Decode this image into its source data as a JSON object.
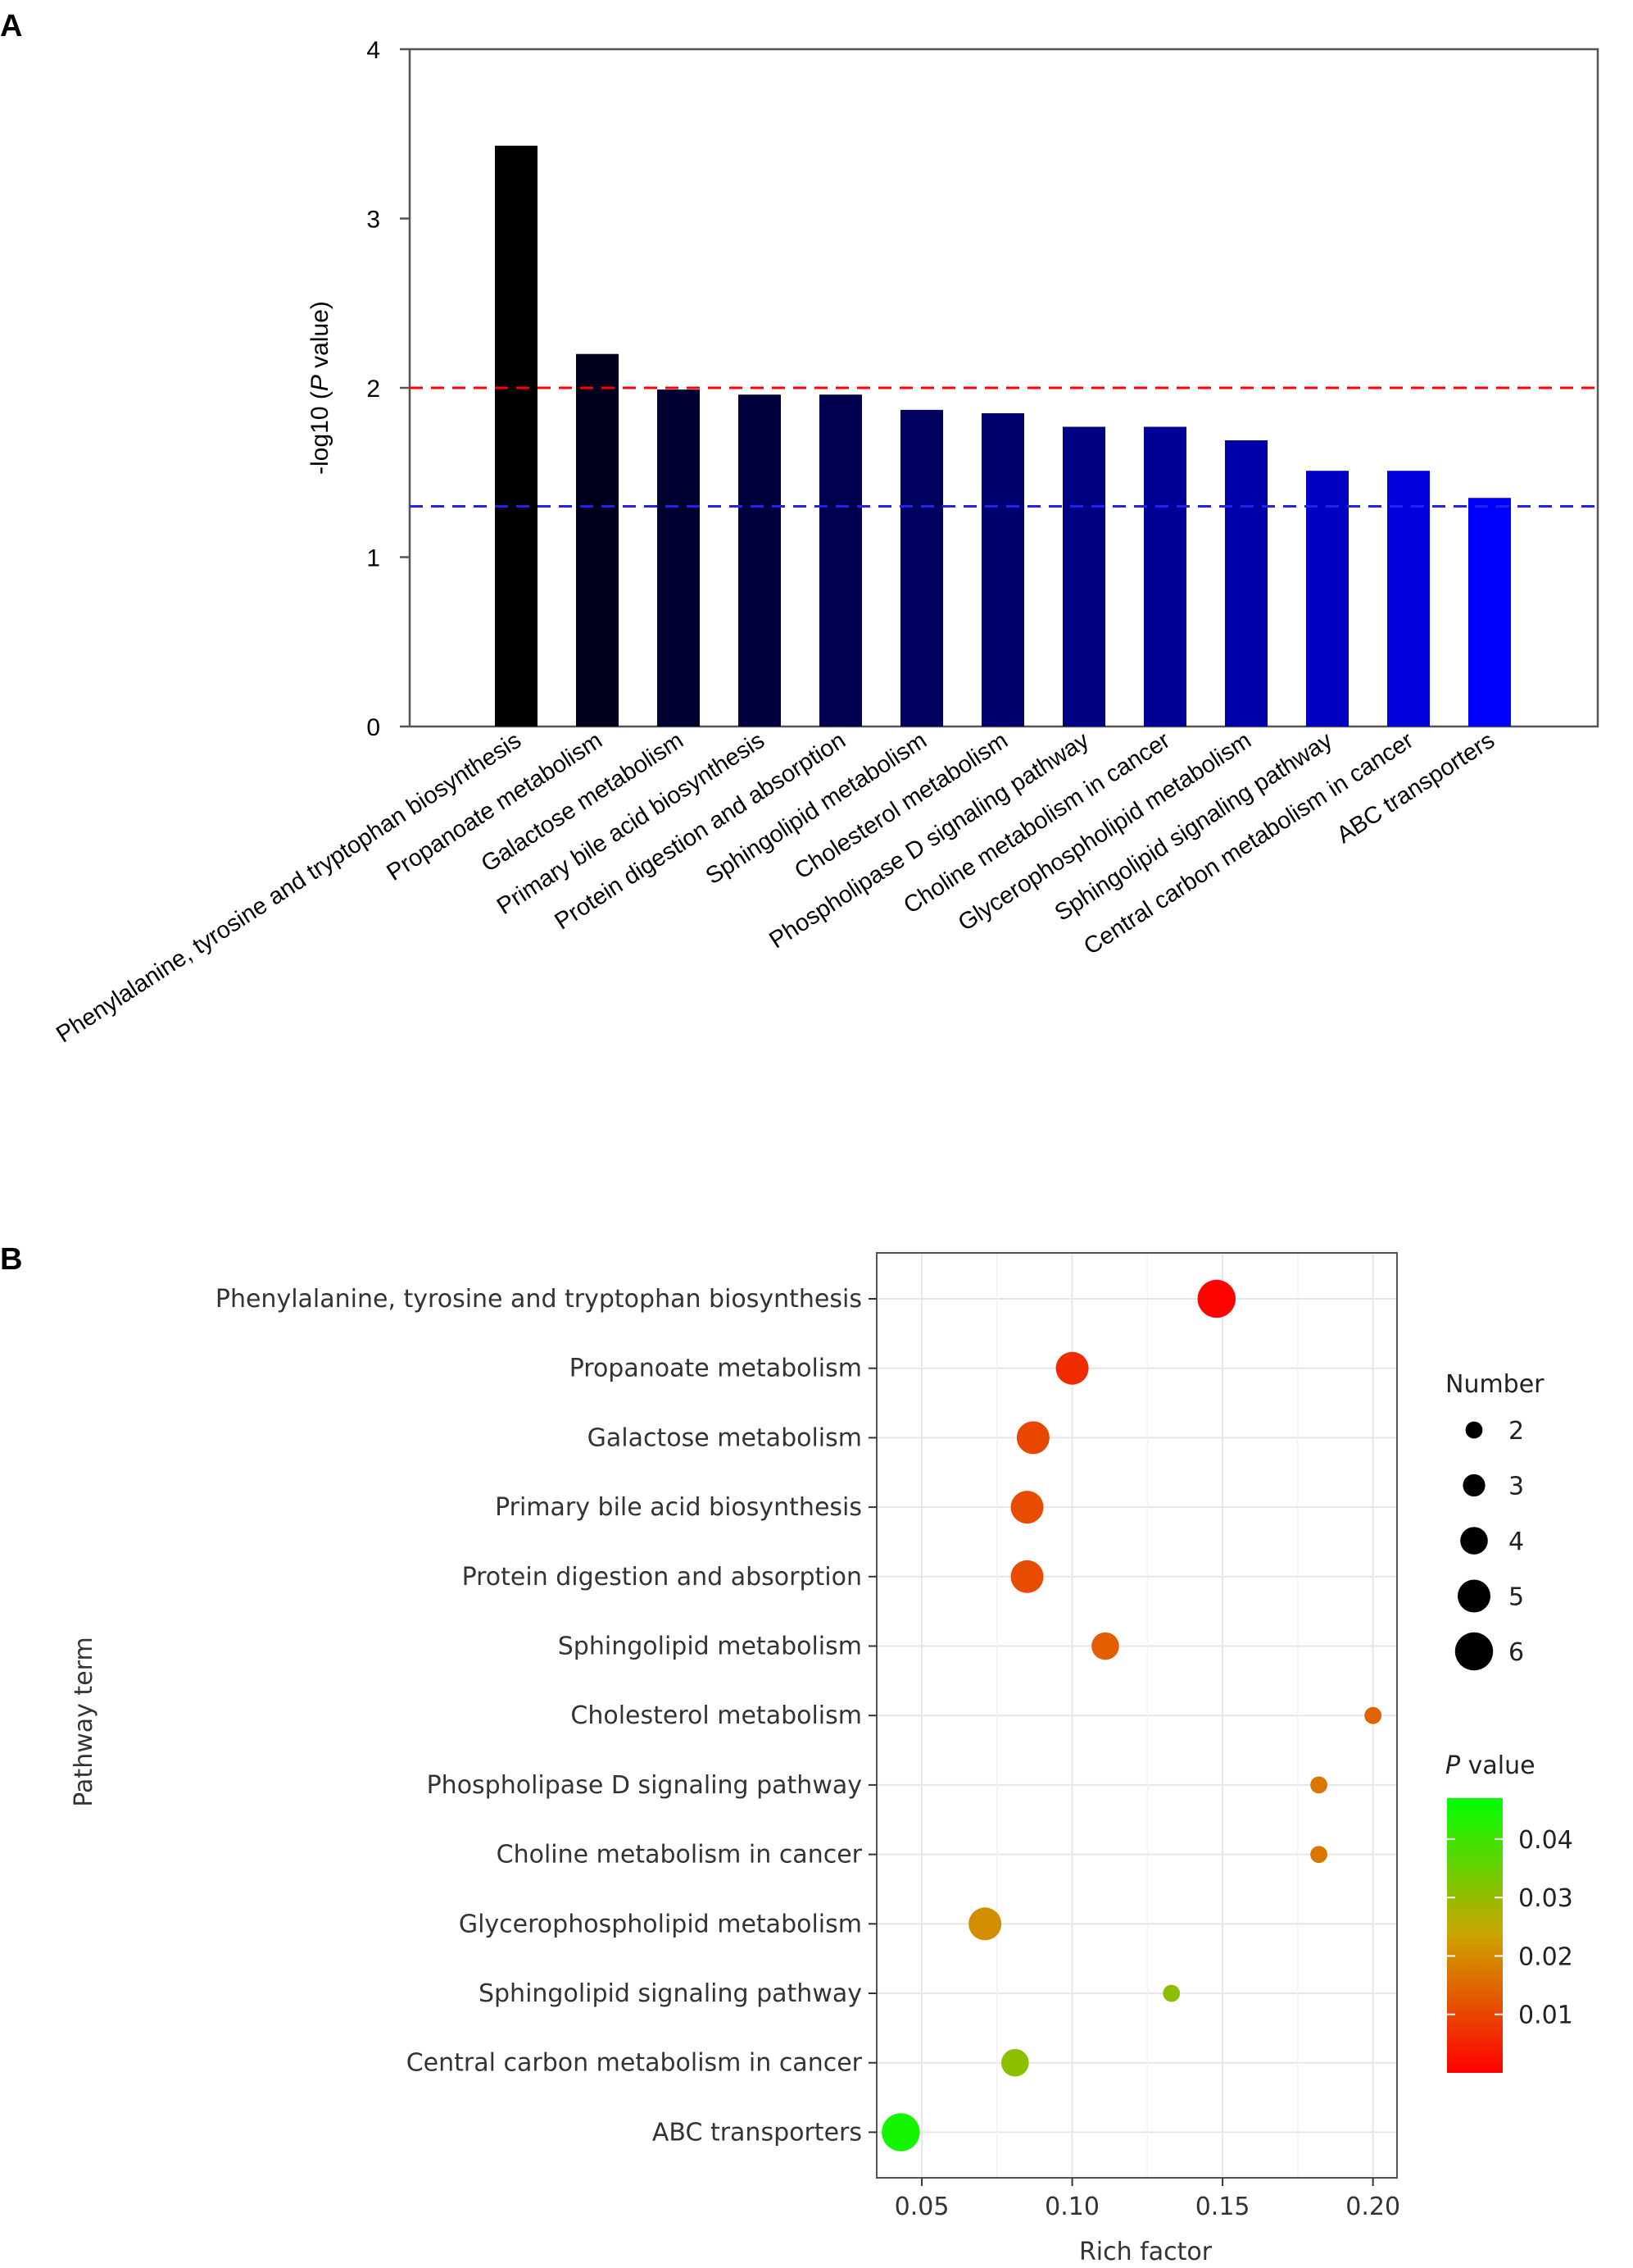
{
  "chart_data": [
    {
      "panel_label": "A",
      "type": "bar",
      "ylabel_prefix": "-log10 (",
      "ylabel_italic": "P",
      "ylabel_suffix": " value)",
      "ylim": [
        0,
        4
      ],
      "yticks": [
        "0",
        "1",
        "2",
        "3",
        "4"
      ],
      "threshold_lines": [
        {
          "value": 2.0,
          "color": "#ff0000"
        },
        {
          "value": 1.3,
          "color": "#2222ee"
        }
      ],
      "categories": [
        "Phenylalanine, tyrosine and tryptophan biosynthesis",
        "Propanoate metabolism",
        "Galactose metabolism",
        "Primary bile acid biosynthesis",
        "Protein digestion and absorption",
        "Sphingolipid metabolism",
        "Cholesterol metabolism",
        "Phospholipase D signaling pathway",
        "Choline metabolism in cancer",
        "Glycerophospholipid metabolism",
        "Sphingolipid signaling pathway",
        "Central carbon metabolism in cancer",
        "ABC transporters"
      ],
      "values": [
        3.43,
        2.2,
        1.99,
        1.96,
        1.96,
        1.87,
        1.85,
        1.77,
        1.77,
        1.69,
        1.51,
        1.51,
        1.35
      ],
      "bar_colors": [
        "#000000",
        "#00001e",
        "#000030",
        "#00003f",
        "#00004f",
        "#00005f",
        "#000070",
        "#000082",
        "#000096",
        "#0000aa",
        "#0000c2",
        "#0000dc",
        "#0000ff"
      ],
      "grid": false
    },
    {
      "panel_label": "B",
      "type": "scatter",
      "xlabel": "Rich factor",
      "ylabel": "Pathway term",
      "xlim": [
        0.035,
        0.208
      ],
      "xticks": [
        0.05,
        0.1,
        0.15,
        0.2
      ],
      "xtick_labels": [
        "0.05",
        "0.10",
        "0.15",
        "0.20"
      ],
      "grid": true,
      "categories": [
        "Phenylalanine, tyrosine and tryptophan biosynthesis",
        "Propanoate metabolism",
        "Galactose metabolism",
        "Primary bile acid biosynthesis",
        "Protein digestion and absorption",
        "Sphingolipid metabolism",
        "Cholesterol metabolism",
        "Phospholipase D signaling pathway",
        "Choline metabolism in cancer",
        "Glycerophospholipid metabolism",
        "Sphingolipid signaling pathway",
        "Central carbon metabolism in cancer",
        "ABC transporters"
      ],
      "points": [
        {
          "rich_factor": 0.148,
          "number": 6,
          "p_value": 0.0004
        },
        {
          "rich_factor": 0.1,
          "number": 5,
          "p_value": 0.0063
        },
        {
          "rich_factor": 0.087,
          "number": 5,
          "p_value": 0.0102
        },
        {
          "rich_factor": 0.085,
          "number": 5,
          "p_value": 0.011
        },
        {
          "rich_factor": 0.085,
          "number": 5,
          "p_value": 0.011
        },
        {
          "rich_factor": 0.111,
          "number": 4,
          "p_value": 0.0135
        },
        {
          "rich_factor": 0.2,
          "number": 2,
          "p_value": 0.0141
        },
        {
          "rich_factor": 0.182,
          "number": 2,
          "p_value": 0.017
        },
        {
          "rich_factor": 0.182,
          "number": 2,
          "p_value": 0.017
        },
        {
          "rich_factor": 0.071,
          "number": 5,
          "p_value": 0.0204
        },
        {
          "rich_factor": 0.133,
          "number": 2,
          "p_value": 0.031
        },
        {
          "rich_factor": 0.081,
          "number": 4,
          "p_value": 0.031
        },
        {
          "rich_factor": 0.043,
          "number": 6,
          "p_value": 0.0447
        }
      ],
      "size_legend": {
        "title": "Number",
        "entries": [
          "2",
          "3",
          "4",
          "5",
          "6"
        ]
      },
      "color_legend": {
        "title_italic": "P",
        "title_suffix": " value",
        "ticks": [
          0.04,
          0.03,
          0.02,
          0.01
        ],
        "tick_labels": [
          "0.04",
          "0.03",
          "0.02",
          "0.01"
        ],
        "range": [
          0.0,
          0.047
        ],
        "low_color": "#ff0000",
        "mid_color": "#cca300",
        "high_color": "#00ff00"
      }
    }
  ]
}
